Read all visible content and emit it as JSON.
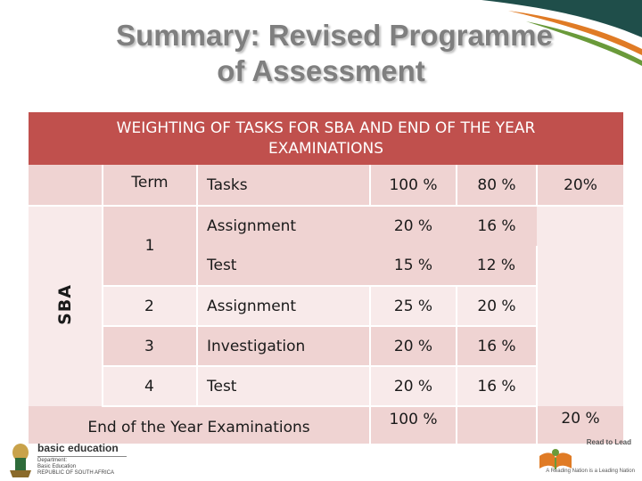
{
  "title": {
    "line1": "Summary: Revised Programme",
    "line2": "of Assessment"
  },
  "table": {
    "header_line1": "WEIGHTING OF TASKS FOR SBA AND END OF THE YEAR",
    "header_line2": "EXAMINATIONS",
    "side_label": "SBA",
    "columns": [
      "Term",
      "Tasks",
      "100 %",
      "80 %",
      "20%"
    ],
    "rows": [
      {
        "term": "1",
        "task": "Assignment",
        "pct100": "20 %",
        "pct80": "16 %"
      },
      {
        "term": "",
        "task": "Test",
        "pct100": "15 %",
        "pct80": "12 %"
      },
      {
        "term": "2",
        "task": "Assignment",
        "pct100": "25 %",
        "pct80": "20 %"
      },
      {
        "term": "3",
        "task": "Investigation",
        "pct100": "20 %",
        "pct80": "16 %"
      },
      {
        "term": "4",
        "task": "Test",
        "pct100": "20 %",
        "pct80": "16 %"
      }
    ],
    "footer": {
      "label": "End of the Year Examinations",
      "pct100": "100 %",
      "pct20": "20 %"
    }
  },
  "logos": {
    "left_title": "basic education",
    "left_sub1": "Department:",
    "left_sub2": "Basic Education",
    "left_sub3": "REPUBLIC OF SOUTH AFRICA",
    "right_top": "Read to Lead",
    "right_tagline": "A Reading Nation is a Leading Nation"
  },
  "colors": {
    "header": "#c0504d",
    "band_pink": "#efd3d2",
    "band_light": "#f8eaea",
    "swoosh_dark": "#1f4e4a",
    "swoosh_orange": "#e07b25",
    "swoosh_green": "#6a9a3a"
  }
}
